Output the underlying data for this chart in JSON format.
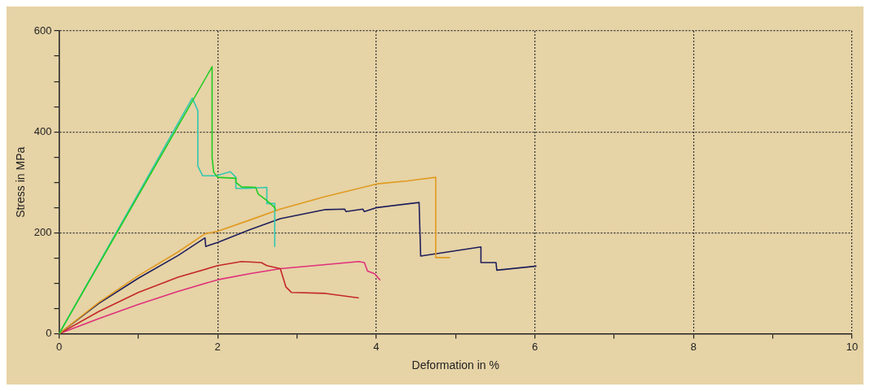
{
  "chart_data": {
    "type": "line",
    "xlabel": "Deformation in %",
    "ylabel": "Stress in MPa",
    "xlim": [
      0,
      10
    ],
    "ylim": [
      0,
      600
    ],
    "xticks": [
      0,
      {
        "value": 1,
        "label": null
      },
      2,
      {
        "value": 3,
        "label": null
      },
      4,
      {
        "value": 5,
        "label": null
      },
      6,
      {
        "value": 7,
        "label": null
      },
      8,
      {
        "value": 9,
        "label": null
      },
      10
    ],
    "yticks": [
      0,
      {
        "value": 50,
        "label": null
      },
      {
        "value": 100,
        "label": null
      },
      {
        "value": 150,
        "label": null
      },
      200,
      {
        "value": 250,
        "label": null
      },
      {
        "value": 300,
        "label": null
      },
      {
        "value": 350,
        "label": null
      },
      400,
      {
        "value": 450,
        "label": null
      },
      {
        "value": 500,
        "label": null
      },
      {
        "value": 550,
        "label": null
      },
      600
    ],
    "grid": true,
    "line_style": "solid",
    "marker": "none",
    "legend": false,
    "series": [
      {
        "color": "#22cc22",
        "x": [
          0,
          1.93,
          1.93,
          1.95,
          2.0,
          2.23,
          2.23,
          2.3,
          2.48,
          2.51,
          2.62,
          2.72,
          2.73
        ],
        "values": [
          0,
          529,
          349,
          320,
          310,
          308,
          300,
          291,
          290,
          277,
          264,
          250,
          245
        ]
      },
      {
        "color": "#30c8b0",
        "x": [
          0,
          1.68,
          1.75,
          1.75,
          1.81,
          1.98,
          2.16,
          2.23,
          2.23,
          2.37,
          2.62,
          2.62,
          2.72,
          2.72
        ],
        "values": [
          0,
          467,
          442,
          332,
          313,
          313,
          321,
          310,
          288,
          288,
          290,
          258,
          258,
          173
        ]
      },
      {
        "color": "#e09a20",
        "x": [
          0,
          0.5,
          1.0,
          1.5,
          1.84,
          2.0,
          2.4,
          2.79,
          3.36,
          4.01,
          4.4,
          4.75,
          4.75,
          4.93
        ],
        "values": [
          0,
          62,
          115,
          162,
          198,
          203,
          225,
          247,
          272,
          297,
          303,
          310,
          151,
          151
        ]
      },
      {
        "color": "#1e1e5a",
        "x": [
          0,
          0.5,
          1.0,
          1.5,
          1.84,
          1.85,
          2.0,
          2.4,
          2.79,
          3.36,
          3.6,
          3.62,
          3.83,
          3.85,
          4.01,
          4.54,
          4.56,
          5.32,
          5.32,
          5.51,
          5.52,
          6.02
        ],
        "values": [
          0,
          60,
          110,
          155,
          190,
          173,
          181,
          206,
          228,
          246,
          247,
          242,
          247,
          242,
          250,
          260,
          154,
          172,
          141,
          141,
          126,
          134
        ]
      },
      {
        "color": "#c42828",
        "x": [
          0,
          0.5,
          1.0,
          1.5,
          2.0,
          2.3,
          2.55,
          2.62,
          2.79,
          2.86,
          2.93,
          3.36,
          3.78
        ],
        "values": [
          0,
          44,
          82,
          112,
          135,
          143,
          141,
          135,
          129,
          93,
          82,
          80,
          71
        ]
      },
      {
        "color": "#e0307a",
        "x": [
          0,
          0.5,
          1.0,
          1.5,
          2.0,
          2.4,
          2.79,
          3.36,
          3.78,
          3.85,
          3.89,
          3.98,
          4.05
        ],
        "values": [
          0,
          30,
          58,
          84,
          107,
          119,
          129,
          137,
          143,
          141,
          124,
          119,
          106
        ]
      }
    ]
  }
}
